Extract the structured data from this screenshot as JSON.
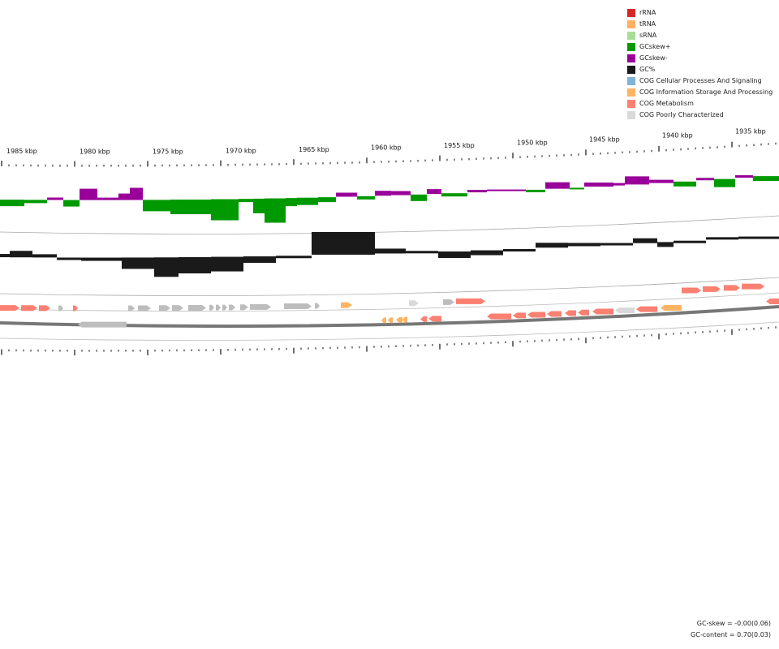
{
  "legend": [
    {
      "label": "rRNA",
      "color": "#d62728"
    },
    {
      "label": "tRNA",
      "color": "#ffb061"
    },
    {
      "label": "sRNA",
      "color": "#a8dd98"
    },
    {
      "label": "GCskew+",
      "color": "#009900"
    },
    {
      "label": "GCskew-",
      "color": "#990099"
    },
    {
      "label": "GC%",
      "color": "#1a1a1a"
    },
    {
      "label": "COG Cellular Processes And Signaling",
      "color": "#7fb3d5"
    },
    {
      "label": "COG Information Storage And Processing",
      "color": "#fdb462"
    },
    {
      "label": "COG Metabolism",
      "color": "#fb8072"
    },
    {
      "label": "COG Poorly Characterized",
      "color": "#d9d9d9"
    }
  ],
  "ruler_labels": [
    "1985 kbp",
    "1980 kbp",
    "1975 kbp",
    "1970 kbp",
    "1965 kbp",
    "1960 kbp",
    "1955 kbp",
    "1950 kbp",
    "1945 kbp",
    "1940 kbp",
    "1935 kbp"
  ],
  "stats": {
    "gc_skew": "GC-skew = -0.00(0.06)",
    "gc_content": "GC-content = 0.70(0.03)"
  }
}
